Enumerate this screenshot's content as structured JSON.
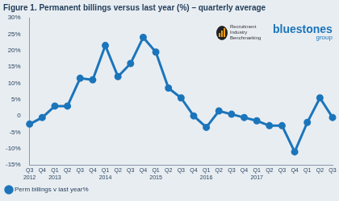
{
  "chart_data": {
    "type": "line",
    "title": "Figure 1. Permanent billings versus last year (%) – quarterly average",
    "annotations": [
      "Recruitment Industry Benchmarking",
      "bluestones group"
    ],
    "categories": [
      "Q3 2012",
      "Q4",
      "Q1 2013",
      "Q2",
      "Q3",
      "Q4",
      "Q1 2014",
      "Q2",
      "Q3",
      "Q4",
      "Q1 2015",
      "Q2",
      "Q3",
      "Q4",
      "Q1 2016",
      "Q2",
      "Q3",
      "Q4",
      "Q1 2017",
      "Q2",
      "Q3",
      "Q4",
      "Q1",
      "Q2",
      "Q3"
    ],
    "series": [
      {
        "name": "Perm billings v last year%",
        "color": "#1b75bb",
        "marker": "circle",
        "line_style": "solid",
        "values": [
          -2.5,
          -0.5,
          3,
          3,
          11.5,
          11,
          21.5,
          12,
          16,
          24,
          19.5,
          8.5,
          5.5,
          0,
          -3.5,
          1.5,
          0.5,
          -0.5,
          -1.5,
          -3,
          -3,
          -11,
          -2,
          5.5,
          -0.5
        ]
      }
    ],
    "ylim": [
      -15,
      30
    ],
    "yticks": [
      {
        "value": -15,
        "label": "-15%"
      },
      {
        "value": -10,
        "label": "-10%"
      },
      {
        "value": -5,
        "label": "-5%"
      },
      0,
      {
        "value": 5,
        "label": "5%"
      },
      {
        "value": 10,
        "label": "10%"
      },
      {
        "value": 15,
        "label": "15%"
      },
      {
        "value": 20,
        "label": "20%"
      },
      {
        "value": 25,
        "label": "25%"
      },
      {
        "value": 30,
        "label": "30%"
      }
    ],
    "grid": false,
    "legend": "bottom-left"
  }
}
